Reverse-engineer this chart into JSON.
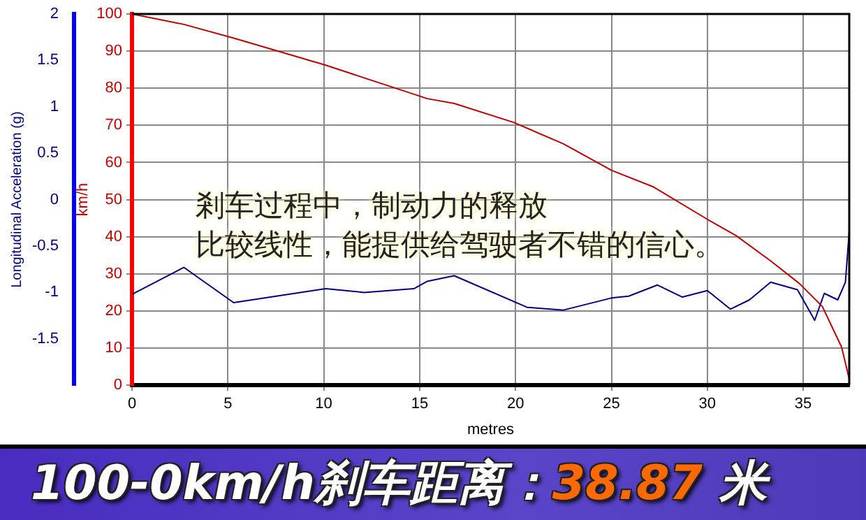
{
  "chart_data": {
    "type": "line",
    "xlabel": "metres",
    "ylabel": "km/h",
    "y2label": "Longitudinal Acceleration (g)",
    "xlim": [
      0,
      37.4
    ],
    "xticks": [
      0,
      5,
      10,
      15,
      20,
      25,
      30,
      35
    ],
    "ylim": [
      0,
      100
    ],
    "yticks": [
      0,
      10,
      20,
      30,
      40,
      50,
      60,
      70,
      80,
      90,
      100
    ],
    "y2lim": [
      -2,
      2
    ],
    "y2ticks": [
      -1.5,
      -1,
      -0.5,
      0,
      0.5,
      1,
      1.5,
      2
    ],
    "grid": true,
    "legend": false,
    "marker": "none",
    "line_style": "solid",
    "series": [
      {
        "color": "#c00000",
        "x": [
          0,
          2.7,
          5.3,
          10.1,
          15.4,
          16.8,
          19.9,
          22.5,
          25.0,
          27.2,
          30.0,
          31.5,
          33.3,
          34.8,
          36.0,
          37.0,
          37.4
        ],
        "values": [
          100,
          97.2,
          93.5,
          86.2,
          77.2,
          75.9,
          70.8,
          65.0,
          57.9,
          53.4,
          44.7,
          40.3,
          33.5,
          27.4,
          21.2,
          10.3,
          1.7
        ]
      },
      {
        "color": "#000080",
        "axis": "y2",
        "x": [
          0,
          2.7,
          5.3,
          10.1,
          12.1,
          14.7,
          15.4,
          16.8,
          20.6,
          22.5,
          25.0,
          25.9,
          27.4,
          28.7,
          30.0,
          31.2,
          32.2,
          33.3,
          34.7,
          35.6,
          36.1,
          36.8,
          37.2,
          37.4
        ],
        "values": [
          -1.02,
          -0.73,
          -1.11,
          -0.96,
          -1.0,
          -0.96,
          -0.88,
          -0.82,
          -1.16,
          -1.19,
          -1.06,
          -1.04,
          -0.92,
          -1.05,
          -0.98,
          -1.18,
          -1.08,
          -0.89,
          -0.97,
          -1.3,
          -1.01,
          -1.08,
          -0.89,
          -0.34
        ]
      }
    ],
    "annotations": [
      "剎车过程中，制动力的释放",
      "比较线性，能提供给驾驶者不错的信心。",
      "100-0km/h刹车距离：38.87 米"
    ]
  }
}
